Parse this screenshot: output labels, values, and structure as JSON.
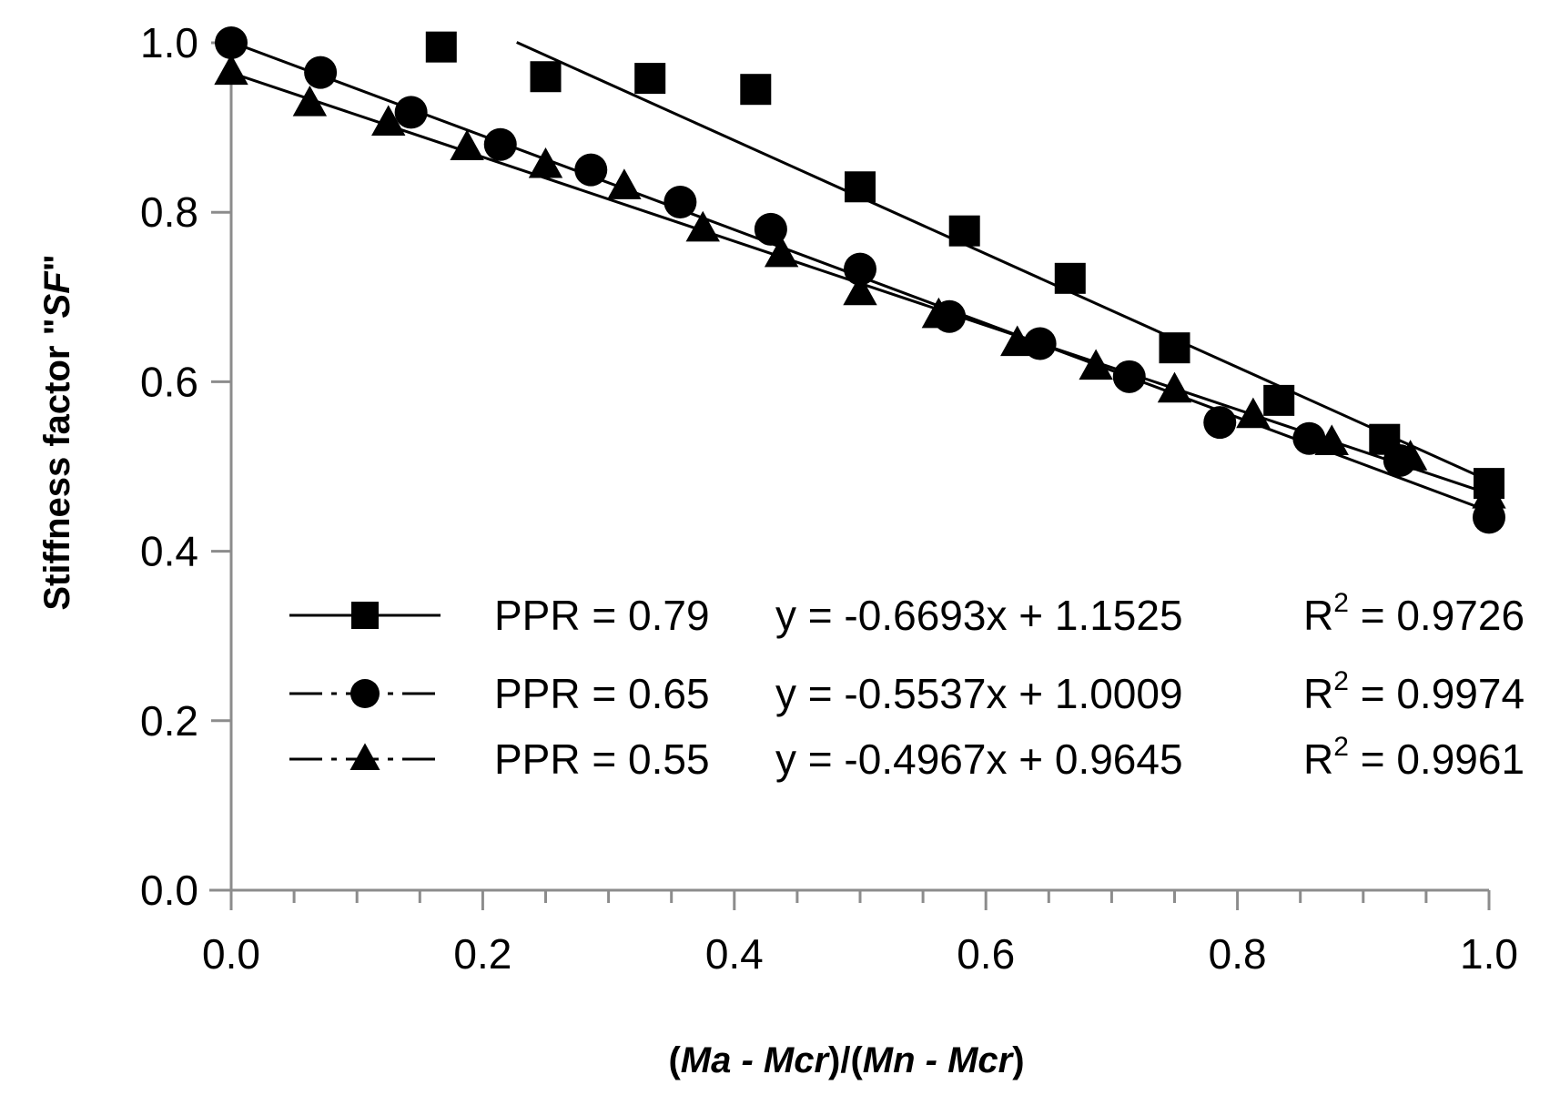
{
  "chart_data": {
    "type": "scatter",
    "title": "",
    "xlabel": {
      "parts": [
        {
          "text": "(",
          "italic": false
        },
        {
          "text": "Ma - Mcr",
          "italic": true
        },
        {
          "text": ")/(",
          "italic": false
        },
        {
          "text": "Mn - Mcr",
          "italic": true
        },
        {
          "text": ")",
          "italic": false
        }
      ]
    },
    "ylabel": {
      "parts": [
        {
          "text": "Stiffness factor \"",
          "italic": false
        },
        {
          "text": "SF",
          "italic": true
        },
        {
          "text": "\"",
          "italic": false
        }
      ]
    },
    "xlim": [
      0.0,
      1.0
    ],
    "ylim": [
      0.0,
      1.0
    ],
    "xticks": [
      "0.0",
      "0.2",
      "0.4",
      "0.6",
      "0.8",
      "1.0"
    ],
    "yticks": [
      "0.0",
      "0.2",
      "0.4",
      "0.6",
      "0.8",
      "1.0"
    ],
    "x_minor_step": 0.05,
    "grid": false,
    "legend_position": "lower-left inside",
    "series": [
      {
        "name": "PPR = 0.79",
        "marker": "square",
        "line_style": "solid",
        "equation": "y = -0.6693x + 1.1525",
        "r2_label": "R",
        "r2_sup": "2",
        "r2_value": " = 0.9726",
        "fit": {
          "slope": -0.6693,
          "intercept": 1.1525,
          "x_start": 0.227,
          "x_end": 1.0
        },
        "points": [
          [
            0.167,
            0.995
          ],
          [
            0.25,
            0.96
          ],
          [
            0.333,
            0.958
          ],
          [
            0.417,
            0.945
          ],
          [
            0.5,
            0.83
          ],
          [
            0.583,
            0.778
          ],
          [
            0.667,
            0.722
          ],
          [
            0.75,
            0.64
          ],
          [
            0.833,
            0.578
          ],
          [
            0.917,
            0.532
          ],
          [
            1.0,
            0.48
          ]
        ]
      },
      {
        "name": "PPR = 0.65",
        "marker": "circle",
        "line_style": "dashdot",
        "equation": "y = -0.5537x + 1.0009",
        "r2_label": "R",
        "r2_sup": "2",
        "r2_value": " = 0.9974",
        "fit": {
          "slope": -0.5537,
          "intercept": 1.0009,
          "x_start": 0.0,
          "x_end": 1.0
        },
        "points": [
          [
            0.0,
            1.0
          ],
          [
            0.071,
            0.965
          ],
          [
            0.143,
            0.918
          ],
          [
            0.214,
            0.88
          ],
          [
            0.286,
            0.85
          ],
          [
            0.357,
            0.812
          ],
          [
            0.429,
            0.78
          ],
          [
            0.5,
            0.733
          ],
          [
            0.571,
            0.677
          ],
          [
            0.643,
            0.645
          ],
          [
            0.714,
            0.606
          ],
          [
            0.786,
            0.552
          ],
          [
            0.857,
            0.533
          ],
          [
            0.929,
            0.507
          ],
          [
            1.0,
            0.44
          ]
        ]
      },
      {
        "name": "PPR = 0.55",
        "marker": "triangle",
        "line_style": "dashdot",
        "equation": "y = -0.4967x + 0.9645",
        "r2_label": "R",
        "r2_sup": "2",
        "r2_value": " = 0.9961",
        "fit": {
          "slope": -0.4967,
          "intercept": 0.9645,
          "x_start": 0.0,
          "x_end": 1.0
        },
        "points": [
          [
            0.0,
            0.965
          ],
          [
            0.0625,
            0.928
          ],
          [
            0.125,
            0.905
          ],
          [
            0.1875,
            0.876
          ],
          [
            0.25,
            0.855
          ],
          [
            0.3125,
            0.83
          ],
          [
            0.375,
            0.78
          ],
          [
            0.4375,
            0.75
          ],
          [
            0.5,
            0.705
          ],
          [
            0.5625,
            0.678
          ],
          [
            0.625,
            0.645
          ],
          [
            0.6875,
            0.617
          ],
          [
            0.75,
            0.59
          ],
          [
            0.8125,
            0.56
          ],
          [
            0.875,
            0.528
          ],
          [
            0.9375,
            0.51
          ],
          [
            1.0,
            0.465
          ]
        ]
      }
    ]
  }
}
